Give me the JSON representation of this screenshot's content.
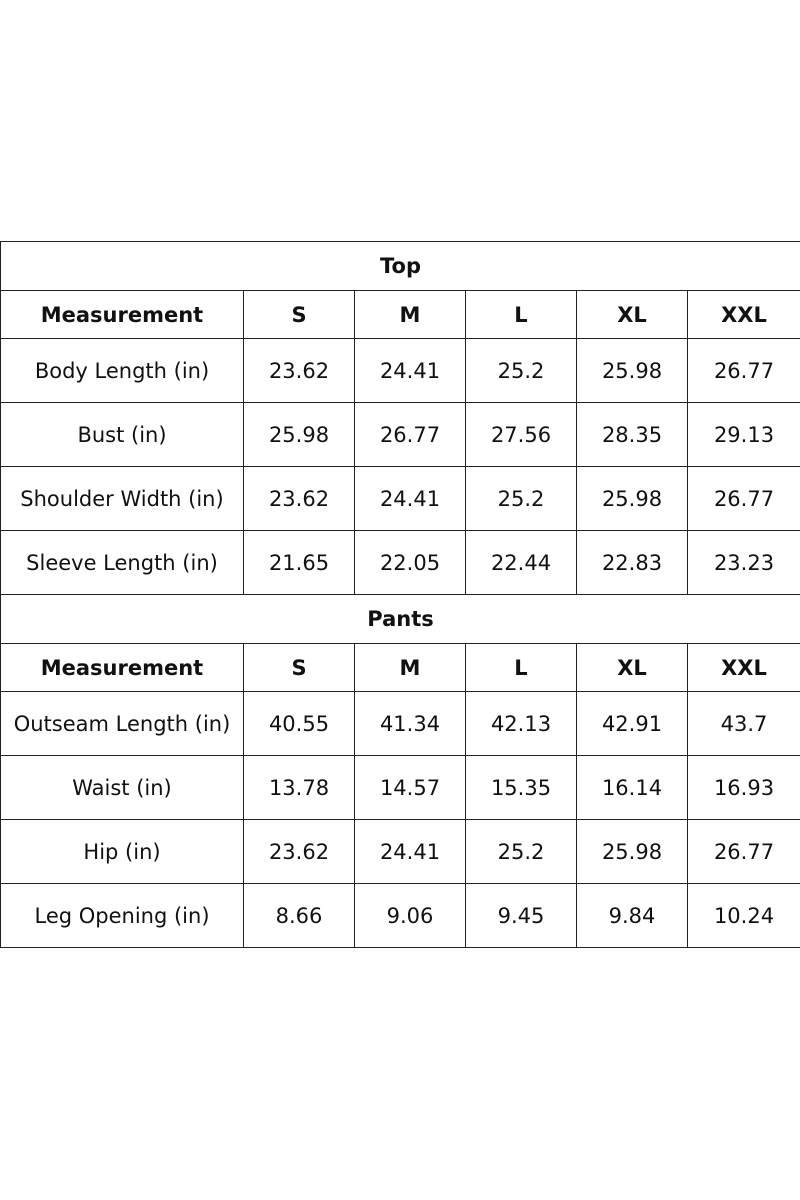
{
  "tables": [
    {
      "title": "Top",
      "header": [
        "Measurement",
        "S",
        "M",
        "L",
        "XL",
        "XXL"
      ],
      "rows": [
        [
          "Body Length (in)",
          "23.62",
          "24.41",
          "25.2",
          "25.98",
          "26.77"
        ],
        [
          "Bust (in)",
          "25.98",
          "26.77",
          "27.56",
          "28.35",
          "29.13"
        ],
        [
          "Shoulder Width (in)",
          "23.62",
          "24.41",
          "25.2",
          "25.98",
          "26.77"
        ],
        [
          "Sleeve Length (in)",
          "21.65",
          "22.05",
          "22.44",
          "22.83",
          "23.23"
        ]
      ]
    },
    {
      "title": "Pants",
      "header": [
        "Measurement",
        "S",
        "M",
        "L",
        "XL",
        "XXL"
      ],
      "rows": [
        [
          "Outseam Length (in)",
          "40.55",
          "41.34",
          "42.13",
          "42.91",
          "43.7"
        ],
        [
          "Waist (in)",
          "13.78",
          "14.57",
          "15.35",
          "16.14",
          "16.93"
        ],
        [
          "Hip (in)",
          "23.62",
          "24.41",
          "25.2",
          "25.98",
          "26.77"
        ],
        [
          "Leg Opening (in)",
          "8.66",
          "9.06",
          "9.45",
          "9.84",
          "10.24"
        ]
      ]
    }
  ]
}
